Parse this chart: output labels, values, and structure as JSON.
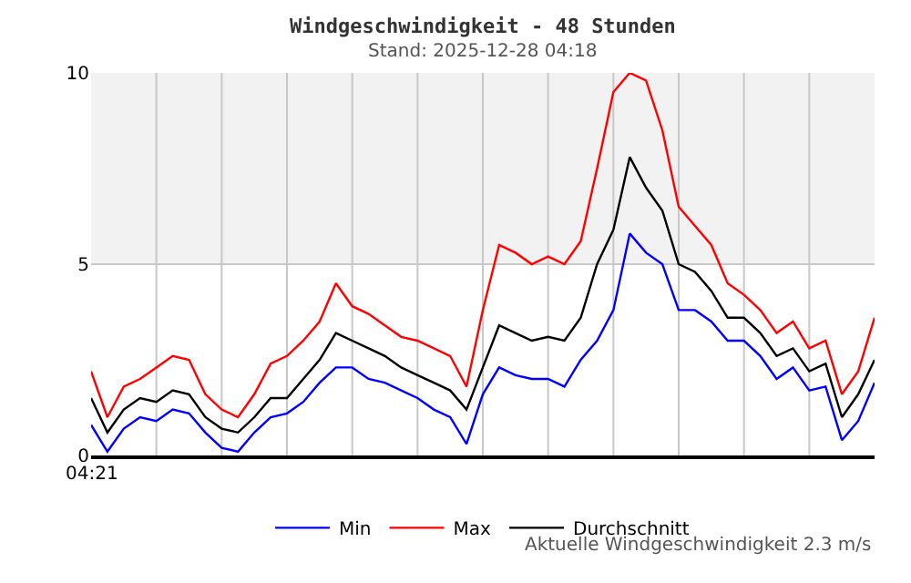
{
  "chart_data": {
    "type": "line",
    "title": "Windgeschwindigkeit - 48 Stunden",
    "subtitle": "Stand: 2025-12-28 04:18",
    "categories": [
      null,
      null,
      null,
      null,
      null,
      null,
      null,
      null,
      null,
      null,
      null,
      null,
      null,
      null,
      null,
      null,
      null,
      null,
      null,
      null,
      null,
      null,
      null,
      null,
      null,
      null,
      null,
      null,
      null,
      null,
      null,
      null,
      null,
      null,
      null,
      null,
      null,
      null,
      null,
      null,
      null,
      null,
      null,
      null,
      null,
      null,
      null,
      null,
      null
    ],
    "series": [
      {
        "name": "Min",
        "color": "#0000ff",
        "values": [
          0.8,
          0.1,
          0.7,
          1.0,
          0.9,
          1.2,
          1.1,
          0.6,
          0.2,
          0.1,
          0.6,
          1.0,
          1.1,
          1.4,
          1.9,
          2.3,
          2.3,
          2.0,
          1.9,
          1.7,
          1.5,
          1.2,
          1.0,
          0.3,
          1.6,
          2.3,
          2.1,
          2.0,
          2.0,
          1.8,
          2.5,
          3.0,
          3.8,
          5.8,
          5.3,
          5.0,
          3.8,
          3.8,
          3.5,
          3.0,
          3.0,
          2.6,
          2.0,
          2.3,
          1.7,
          1.8,
          0.4,
          0.9,
          1.9
        ]
      },
      {
        "name": "Max",
        "color": "#ff0000",
        "values": [
          2.2,
          1.0,
          1.8,
          2.0,
          2.3,
          2.6,
          2.5,
          1.6,
          1.2,
          1.0,
          1.6,
          2.4,
          2.6,
          3.0,
          3.5,
          4.5,
          3.9,
          3.7,
          3.4,
          3.1,
          3.0,
          2.8,
          2.6,
          1.8,
          3.8,
          5.5,
          5.3,
          5.0,
          5.2,
          5.0,
          5.6,
          7.5,
          9.5,
          10.0,
          9.8,
          8.5,
          6.5,
          6.0,
          5.5,
          4.5,
          4.2,
          3.8,
          3.2,
          3.5,
          2.8,
          3.0,
          1.6,
          2.2,
          3.6
        ]
      },
      {
        "name": "Durchschnitt",
        "color": "#000000",
        "values": [
          1.5,
          0.6,
          1.2,
          1.5,
          1.4,
          1.7,
          1.6,
          1.0,
          0.7,
          0.6,
          1.0,
          1.5,
          1.5,
          2.0,
          2.5,
          3.2,
          3.0,
          2.8,
          2.6,
          2.3,
          2.1,
          1.9,
          1.7,
          1.2,
          2.3,
          3.4,
          3.2,
          3.0,
          3.1,
          3.0,
          3.6,
          5.0,
          5.9,
          7.8,
          7.0,
          6.4,
          5.0,
          4.8,
          4.3,
          3.6,
          3.6,
          3.2,
          2.6,
          2.8,
          2.2,
          2.4,
          1.0,
          1.6,
          2.5
        ]
      }
    ],
    "ylim": [
      0,
      10
    ],
    "yticks": [
      0,
      5,
      10
    ],
    "bands": [
      {
        "axis": "y",
        "from": 5,
        "to": 10,
        "color": "#f2f2f2"
      }
    ],
    "grid": true,
    "legend": "bottom",
    "marker": "none",
    "line_style": "solid",
    "annotations": [
      "04:21",
      "Aktuelle Windgeschwindigkeit 2.3 m/s"
    ]
  }
}
